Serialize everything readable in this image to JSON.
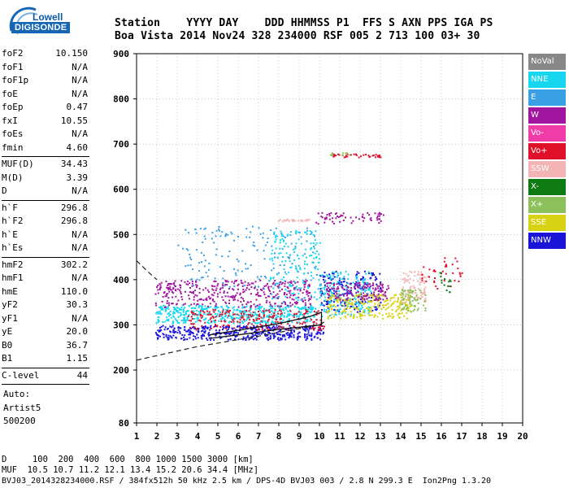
{
  "logo": {
    "brand": "Lowell",
    "product": "DIGISONDE"
  },
  "header": {
    "labels": "Station    YYYY DAY    DDD HHMMSS P1  FFS S AXN PPS IGA PS",
    "values": "Boa Vista 2014 Nov24 328 234000 RSF 005 2 713 100 03+ 30"
  },
  "params": {
    "group1": [
      {
        "k": "foF2",
        "v": "10.150"
      },
      {
        "k": "foF1",
        "v": "N/A"
      },
      {
        "k": "foF1p",
        "v": "N/A"
      },
      {
        "k": "foE",
        "v": "N/A"
      },
      {
        "k": "foEp",
        "v": "0.47"
      },
      {
        "k": "fxI",
        "v": "10.55"
      },
      {
        "k": "foEs",
        "v": "N/A"
      },
      {
        "k": "fmin",
        "v": "4.60"
      }
    ],
    "group2": [
      {
        "k": "MUF(D)",
        "v": "34.43"
      },
      {
        "k": "M(D)",
        "v": "3.39"
      },
      {
        "k": "D",
        "v": "N/A"
      }
    ],
    "group3": [
      {
        "k": "h`F",
        "v": "296.8"
      },
      {
        "k": "h`F2",
        "v": "296.8"
      },
      {
        "k": "h`E",
        "v": "N/A"
      },
      {
        "k": "h`Es",
        "v": "N/A"
      }
    ],
    "group4": [
      {
        "k": "hmF2",
        "v": "302.2"
      },
      {
        "k": "hmF1",
        "v": "N/A"
      },
      {
        "k": "hmE",
        "v": "110.0"
      },
      {
        "k": "yF2",
        "v": "30.3"
      },
      {
        "k": "yF1",
        "v": "N/A"
      },
      {
        "k": "yE",
        "v": "20.0"
      },
      {
        "k": "B0",
        "v": "36.7"
      },
      {
        "k": "B1",
        "v": "1.15"
      }
    ],
    "clevel": {
      "k": "C-level",
      "v": "44"
    },
    "auto": [
      "Auto:",
      "Artist5",
      "500200"
    ]
  },
  "legend": [
    {
      "label": "NoVal",
      "bg": "#888888",
      "fg": "#ffffff"
    },
    {
      "label": "NNE",
      "bg": "#17d6f0",
      "fg": "#ffffff"
    },
    {
      "label": "E",
      "bg": "#3aa0e6",
      "fg": "#ffffff"
    },
    {
      "label": "W",
      "bg": "#a0149e",
      "fg": "#ffffff"
    },
    {
      "label": "Vo-",
      "bg": "#f03ca8",
      "fg": "#ffffff"
    },
    {
      "label": "Vo+",
      "bg": "#e0102a",
      "fg": "#ffffff"
    },
    {
      "label": "SSW",
      "bg": "#f4b4b4",
      "fg": "#ffffff"
    },
    {
      "label": "X-",
      "bg": "#0e7a12",
      "fg": "#ffffff"
    },
    {
      "label": "X+",
      "bg": "#8cc05a",
      "fg": "#ffffff"
    },
    {
      "label": "SSE",
      "bg": "#d8d214",
      "fg": "#ffffff"
    },
    {
      "label": "NNW",
      "bg": "#1a14d8",
      "fg": "#ffffff"
    }
  ],
  "chart_data": {
    "type": "scatter",
    "x_ticks": [
      "1",
      "2",
      "3",
      "4",
      "5",
      "6",
      "7",
      "8",
      "9",
      "10",
      "11",
      "12",
      "13",
      "14",
      "15",
      "16",
      "17",
      "18",
      "19",
      "20"
    ],
    "y_ticks": [
      "80",
      "200",
      "300",
      "400",
      "500",
      "600",
      "700",
      "800",
      "900"
    ],
    "xlim": [
      1,
      20
    ],
    "ylim": [
      80,
      900
    ],
    "grid": true,
    "legend_placement": "right",
    "traces": {
      "lower_dashed": [
        [
          1,
          222
        ],
        [
          4,
          252
        ],
        [
          7,
          275
        ],
        [
          10,
          300
        ],
        [
          10.3,
          308
        ]
      ],
      "upper_dashed": [
        [
          1,
          442
        ],
        [
          1.5,
          420
        ],
        [
          2,
          400
        ]
      ],
      "solid_profile": [
        [
          4.6,
          278
        ],
        [
          6,
          288
        ],
        [
          8,
          303
        ],
        [
          9.5,
          318
        ],
        [
          10.1,
          328
        ],
        [
          10.1,
          300
        ],
        [
          8,
          290
        ],
        [
          6,
          278
        ],
        [
          4.6,
          270
        ]
      ]
    },
    "clusters": [
      {
        "color": "#1a14d8",
        "x": [
          1.9,
          10.2
        ],
        "y": [
          268,
          300
        ],
        "n": 420
      },
      {
        "color": "#17d6f0",
        "x": [
          1.9,
          9.8
        ],
        "y": [
          305,
          345
        ],
        "n": 520
      },
      {
        "color": "#a0149e",
        "x": [
          1.9,
          9.6
        ],
        "y": [
          340,
          400
        ],
        "n": 380
      },
      {
        "color": "#e0102a",
        "x": [
          3.5,
          10.2
        ],
        "y": [
          290,
          335
        ],
        "n": 220
      },
      {
        "color": "#3aa0e6",
        "x": [
          3.0,
          10.0
        ],
        "y": [
          380,
          520
        ],
        "n": 160
      },
      {
        "color": "#17d6f0",
        "x": [
          7.5,
          10.0
        ],
        "y": [
          350,
          510
        ],
        "n": 160
      },
      {
        "color": "#1a14d8",
        "x": [
          10.0,
          13.0
        ],
        "y": [
          330,
          420
        ],
        "n": 200
      },
      {
        "color": "#17d6f0",
        "x": [
          10.0,
          12.5
        ],
        "y": [
          320,
          420
        ],
        "n": 180
      },
      {
        "color": "#d8d214",
        "x": [
          10.3,
          14.5
        ],
        "y": [
          315,
          370
        ],
        "n": 260
      },
      {
        "color": "#a0149e",
        "x": [
          10.3,
          13.4
        ],
        "y": [
          355,
          395
        ],
        "n": 140
      },
      {
        "color": "#f4b4b4",
        "x": [
          14.0,
          15.2
        ],
        "y": [
          350,
          420
        ],
        "n": 90
      },
      {
        "color": "#8cc05a",
        "x": [
          14.0,
          15.2
        ],
        "y": [
          330,
          380
        ],
        "n": 70
      },
      {
        "color": "#e0102a",
        "x": [
          15.0,
          17.0
        ],
        "y": [
          380,
          450
        ],
        "n": 40
      },
      {
        "color": "#0e7a12",
        "x": [
          15.8,
          16.5
        ],
        "y": [
          370,
          420
        ],
        "n": 15
      },
      {
        "color": "#a0149e",
        "x": [
          9.5,
          13.2
        ],
        "y": [
          525,
          550
        ],
        "n": 60
      },
      {
        "color": "#f4b4b4",
        "x": [
          7.8,
          9.5
        ],
        "y": [
          530,
          535
        ],
        "n": 25
      },
      {
        "color": "#e0102a",
        "x": [
          10.6,
          13.0
        ],
        "y": [
          672,
          680
        ],
        "n": 35
      },
      {
        "color": "#8cc05a",
        "x": [
          10.5,
          11.5
        ],
        "y": [
          676,
          682
        ],
        "n": 12
      }
    ]
  },
  "bottom": {
    "line1": "D     100  200  400  600  800 1000 1500 3000 [km]",
    "line2": "MUF  10.5 10.7 11.2 12.1 13.4 15.2 20.6 34.4 [MHz]",
    "line3": "BVJ03_2014328234000.RSF / 384fx512h 50 kHz 2.5 km / DPS-4D BVJ03 003 / 2.8 N 299.3 E  Ion2Png 1.3.20"
  }
}
